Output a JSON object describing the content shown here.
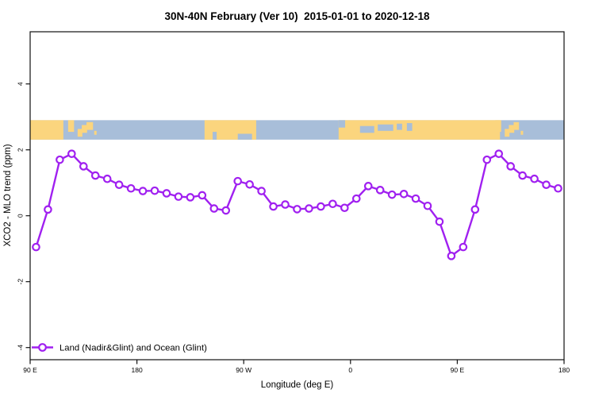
{
  "title": "30N-40N February (Ver 10)  2015-01-01 to 2020-12-18",
  "colors": {
    "line": "#A020F0",
    "marker_fill": "#FFFFFF",
    "ocean": "#A8BED9",
    "land": "#FBD57E",
    "axis": "#111111"
  },
  "legend": {
    "marker": "open-circle-on-line",
    "label": "Land (Nadir&Glint) and Ocean (Glint)"
  },
  "chart_data": {
    "type": "line",
    "title": "30N-40N February (Ver 10)  2015-01-01 to 2020-12-18",
    "xlabel": "Longitude (deg E)",
    "ylabel": "XCO2 - MLO trend (ppm)",
    "x_axis_note": "x measured in degrees eastward from 90E; axis wraps 90E-180-90W-0-90E-180 (450 deg total)",
    "xlim": [
      0,
      450
    ],
    "ylim": [
      -4.4,
      5.6
    ],
    "grid": false,
    "legend_position": "bottom-left",
    "x_ticks": [
      {
        "pos": 0,
        "label": "90 E"
      },
      {
        "pos": 90,
        "label": "180"
      },
      {
        "pos": 180,
        "label": "90 W"
      },
      {
        "pos": 270,
        "label": "0"
      },
      {
        "pos": 360,
        "label": "90 E"
      },
      {
        "pos": 450,
        "label": "180"
      }
    ],
    "y_ticks": [
      {
        "value": 4,
        "label": "4"
      },
      {
        "value": 2,
        "label": "2"
      },
      {
        "value": 0,
        "label": "0"
      },
      {
        "value": -2,
        "label": "-2"
      },
      {
        "value": -4,
        "label": "-4"
      }
    ],
    "x": [
      5,
      15,
      25,
      35,
      45,
      55,
      65,
      75,
      85,
      95,
      105,
      115,
      125,
      135,
      145,
      155,
      165,
      175,
      185,
      195,
      205,
      215,
      225,
      235,
      245,
      255,
      265,
      275,
      285,
      295,
      305,
      315,
      325,
      335,
      345,
      355,
      365,
      375,
      385,
      395,
      405,
      415,
      425,
      435,
      445
    ],
    "series": [
      {
        "name": "Land (Nadir&Glint) and Ocean (Glint)",
        "values": [
          -0.95,
          0.19,
          1.7,
          1.88,
          1.5,
          1.22,
          1.12,
          0.94,
          0.83,
          0.75,
          0.76,
          0.68,
          0.58,
          0.56,
          0.62,
          0.22,
          0.16,
          1.05,
          0.95,
          0.75,
          0.28,
          0.34,
          0.2,
          0.22,
          0.28,
          0.36,
          0.24,
          0.52,
          0.9,
          0.78,
          0.64,
          0.66,
          0.52,
          0.3,
          -0.18,
          -1.22,
          -0.95,
          0.19,
          1.7,
          1.88,
          1.5,
          1.22,
          1.12,
          0.94,
          0.83
        ]
      }
    ],
    "map_band": {
      "description": "world-map strip for latitude band 30N-40N drawn across plot",
      "y_top_value": 2.9,
      "y_bottom_value": 2.31,
      "land_segments": [
        [
          0,
          28,
          0,
          1
        ],
        [
          32,
          37,
          0,
          0.6
        ],
        [
          40,
          44,
          0.45,
          0.85
        ],
        [
          43.5,
          48,
          0.25,
          0.65
        ],
        [
          47.5,
          53,
          0.1,
          0.5
        ],
        [
          54,
          56,
          0.55,
          0.75
        ],
        [
          147,
          190.5,
          0,
          1
        ],
        [
          260,
          396,
          0,
          1
        ],
        [
          392,
          397,
          0,
          0.6
        ],
        [
          400,
          404,
          0.45,
          0.85
        ],
        [
          403.5,
          408,
          0.25,
          0.65
        ],
        [
          407.5,
          412,
          0.1,
          0.5
        ],
        [
          413.5,
          415.5,
          0.55,
          0.75
        ]
      ],
      "ocean_patches": [
        [
          153.8,
          157.2,
          0.6,
          1
        ],
        [
          175,
          187,
          0.7,
          1
        ],
        [
          260,
          265.5,
          0,
          0.38
        ],
        [
          278,
          290,
          0.3,
          0.65
        ],
        [
          293,
          306,
          0.22,
          0.55
        ],
        [
          309,
          313.5,
          0.18,
          0.5
        ],
        [
          317.5,
          322,
          0.15,
          0.55
        ]
      ]
    }
  }
}
